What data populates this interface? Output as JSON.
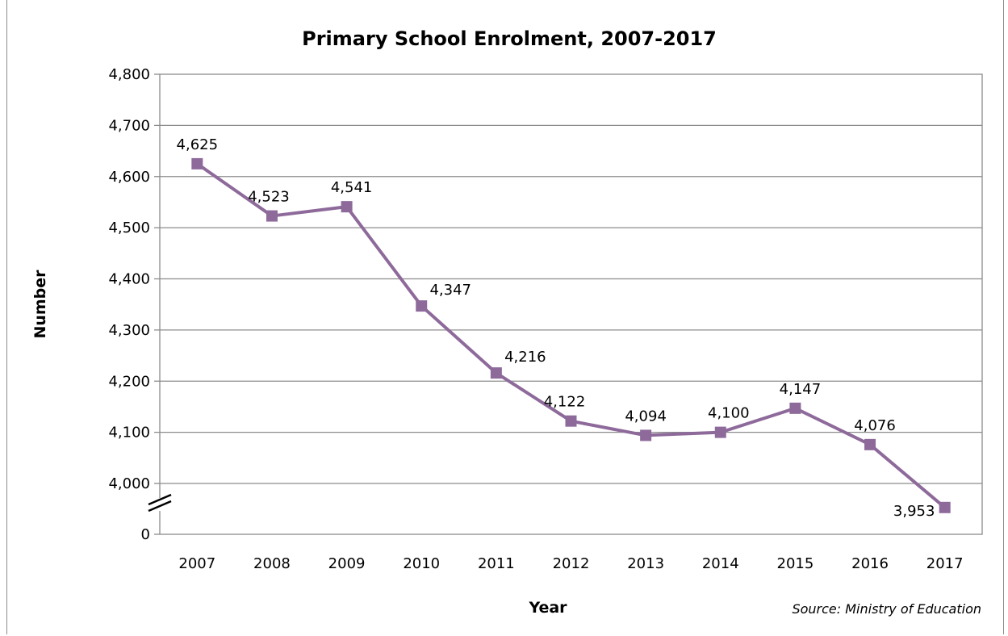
{
  "chart_data": {
    "type": "line",
    "title": "Primary School Enrolment, 2007-2017",
    "xlabel": "Year",
    "ylabel": "Number",
    "source": "Source: Ministry of Education",
    "categories": [
      "2007",
      "2008",
      "2009",
      "2010",
      "2011",
      "2012",
      "2013",
      "2014",
      "2015",
      "2016",
      "2017"
    ],
    "series": [
      {
        "values": [
          4625,
          4523,
          4541,
          4347,
          4216,
          4122,
          4094,
          4100,
          4147,
          4076,
          3953
        ],
        "labels": [
          "4,625",
          "4,523",
          "4,541",
          "4,347",
          "4,216",
          "4,122",
          "4,094",
          "4,100",
          "4,147",
          "4,076",
          "3,953"
        ]
      }
    ],
    "y_ticks": [
      {
        "value": 4800,
        "label": "4,800"
      },
      {
        "value": 4700,
        "label": "4,700"
      },
      {
        "value": 4600,
        "label": "4,600"
      },
      {
        "value": 4500,
        "label": "4,500"
      },
      {
        "value": 4400,
        "label": "4,400"
      },
      {
        "value": 4300,
        "label": "4,300"
      },
      {
        "value": 4200,
        "label": "4,200"
      },
      {
        "value": 4100,
        "label": "4,100"
      },
      {
        "value": 4000,
        "label": "4,000"
      },
      {
        "value": 0,
        "label": "0"
      }
    ],
    "ylim": [
      3900,
      4800
    ],
    "axis_break": true,
    "grid": true,
    "legend": "none",
    "colors": {
      "line": "#8e6a9b",
      "marker": "#8e6a9b",
      "grid": "#8c8c8c"
    }
  }
}
